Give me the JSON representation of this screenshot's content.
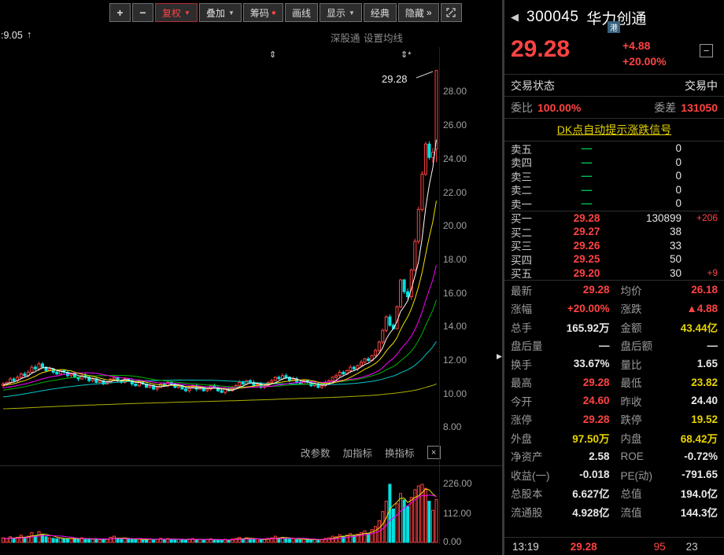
{
  "colors": {
    "red": "#ff4343",
    "cyan": "#00e2e2",
    "yellow": "#e8d400",
    "white": "#e9e9e9",
    "gray": "#9a9a9a",
    "green": "#00c050",
    "magenta": "#ff00ff",
    "ma5": "#ffffff",
    "ma10": "#f0e000",
    "ma20": "#ff00ff",
    "ma30": "#00b400",
    "ma60": "#00c8c8",
    "ma_long": "#b0b000"
  },
  "toolbar": {
    "zoom_in": "+",
    "zoom_out": "−",
    "fuquan": "复权",
    "diejia": "叠加",
    "chouma": "筹码",
    "chouma_dot": "●",
    "huaxian": "画线",
    "xianshi": "显示",
    "jingdian": "经典",
    "yincang": "隐藏",
    "caret": "▼",
    "chevrons": "»"
  },
  "info_row": {
    "left_value": ":9.05",
    "arrow": "↑",
    "shenggutong": "深股通",
    "set_ma": "设置均线"
  },
  "chart_annotations": {
    "peak_price": "29.28",
    "marker1": "⇕",
    "marker2": "⇕*"
  },
  "sub_toolbar": {
    "change_params": "改参数",
    "add_indicator": "加指标",
    "switch_indicator": "换指标",
    "close": "×"
  },
  "divider": {
    "arrow": "▶"
  },
  "chart_data": {
    "type": "candlestick",
    "y_ticks": [
      "28.00",
      "26.00",
      "24.00",
      "22.00",
      "20.00",
      "18.00",
      "16.00",
      "14.00",
      "12.00",
      "10.00",
      "8.00"
    ],
    "vol_ticks": [
      "226.00",
      "112.00",
      "0.00"
    ],
    "today": {
      "open": 24.6,
      "high": 29.28,
      "low": 23.82,
      "close": 29.28
    },
    "closes": [
      10.6,
      10.7,
      10.9,
      10.8,
      11.0,
      11.2,
      11.1,
      11.3,
      11.6,
      11.5,
      11.8,
      11.6,
      11.4,
      11.5,
      11.3,
      11.2,
      11.4,
      11.3,
      11.1,
      11.2,
      11.0,
      10.9,
      11.1,
      11.0,
      10.8,
      10.9,
      10.7,
      10.8,
      10.6,
      10.7,
      10.9,
      11.0,
      10.8,
      10.7,
      10.9,
      10.8,
      10.6,
      10.5,
      10.7,
      10.6,
      10.4,
      10.5,
      10.3,
      10.4,
      10.6,
      10.5,
      10.7,
      10.6,
      10.4,
      10.5,
      10.3,
      10.2,
      10.4,
      10.5,
      10.3,
      10.4,
      10.2,
      10.3,
      10.5,
      10.4,
      10.2,
      10.1,
      10.3,
      10.2,
      10.4,
      10.5,
      10.7,
      10.6,
      10.8,
      10.7,
      10.5,
      10.6,
      10.4,
      10.5,
      10.7,
      10.8,
      11.0,
      10.9,
      11.1,
      11.0,
      10.8,
      10.9,
      10.7,
      10.6,
      10.8,
      10.7,
      10.5,
      10.6,
      10.4,
      10.5,
      10.7,
      10.8,
      11.0,
      11.1,
      11.3,
      11.2,
      11.4,
      11.6,
      11.5,
      11.7,
      11.9,
      12.1,
      12.0,
      12.3,
      12.6,
      13.1,
      13.8,
      14.6,
      14.1,
      13.9,
      15.2,
      16.8,
      16.1,
      15.8,
      17.4,
      19.1,
      21.0,
      23.1,
      24.9,
      24.1,
      24.4,
      29.28
    ],
    "volumes": [
      18,
      15,
      22,
      16,
      20,
      28,
      17,
      24,
      38,
      26,
      42,
      30,
      22,
      18,
      16,
      14,
      18,
      15,
      13,
      16,
      14,
      12,
      18,
      13,
      15,
      12,
      14,
      11,
      13,
      12,
      20,
      24,
      15,
      12,
      17,
      13,
      12,
      10,
      14,
      11,
      12,
      14,
      10,
      12,
      16,
      11,
      15,
      12,
      10,
      13,
      11,
      9,
      13,
      15,
      10,
      12,
      9,
      11,
      14,
      10,
      9,
      8,
      12,
      9,
      13,
      16,
      20,
      14,
      18,
      13,
      11,
      14,
      10,
      12,
      16,
      18,
      24,
      15,
      20,
      16,
      13,
      15,
      11,
      10,
      14,
      11,
      9,
      12,
      9,
      11,
      16,
      18,
      24,
      22,
      30,
      24,
      28,
      34,
      26,
      32,
      38,
      45,
      36,
      50,
      62,
      85,
      120,
      160,
      226,
      130,
      150,
      190,
      165,
      140,
      175,
      205,
      220,
      226,
      210,
      160,
      125,
      166
    ]
  },
  "panel": {
    "back_arrow": "◀",
    "code": "300045",
    "name": "华力创通",
    "badge": "港",
    "price": "29.28",
    "change": "+4.88",
    "change_pct": "+20.00%",
    "minimize": "−",
    "trade_status_label": "交易状态",
    "trade_status": "交易中",
    "weibi_label": "委比",
    "weibi": "100.00%",
    "weicha_label": "委差",
    "weicha": "131050",
    "dk_link": "DK点自动提示涨跌信号",
    "sells": [
      {
        "label": "卖五",
        "price": "—",
        "vol": "0"
      },
      {
        "label": "卖四",
        "price": "—",
        "vol": "0"
      },
      {
        "label": "卖三",
        "price": "—",
        "vol": "0"
      },
      {
        "label": "卖二",
        "price": "—",
        "vol": "0"
      },
      {
        "label": "卖一",
        "price": "—",
        "vol": "0"
      }
    ],
    "buys": [
      {
        "label": "买一",
        "price": "29.28",
        "vol": "130899",
        "delta": "+206"
      },
      {
        "label": "买二",
        "price": "29.27",
        "vol": "38",
        "delta": ""
      },
      {
        "label": "买三",
        "price": "29.26",
        "vol": "33",
        "delta": ""
      },
      {
        "label": "买四",
        "price": "29.25",
        "vol": "50",
        "delta": ""
      },
      {
        "label": "买五",
        "price": "29.20",
        "vol": "30",
        "delta": "+9"
      }
    ],
    "stats": [
      {
        "l1": "最新",
        "v1": "29.28",
        "c1": "red",
        "l2": "均价",
        "v2": "26.18",
        "c2": "red"
      },
      {
        "l1": "涨幅",
        "v1": "+20.00%",
        "c1": "red",
        "l2": "涨跌",
        "v2": "▲4.88",
        "c2": "red"
      },
      {
        "l1": "总手",
        "v1": "165.92万",
        "c1": "white",
        "l2": "金额",
        "v2": "43.44亿",
        "c2": "yellow"
      },
      {
        "l1": "盘后量",
        "v1": "—",
        "c1": "white",
        "l2": "盘后额",
        "v2": "—",
        "c2": "white"
      },
      {
        "l1": "换手",
        "v1": "33.67%",
        "c1": "white",
        "l2": "量比",
        "v2": "1.65",
        "c2": "white"
      },
      {
        "l1": "最高",
        "v1": "29.28",
        "c1": "red",
        "l2": "最低",
        "v2": "23.82",
        "c2": "yellow"
      },
      {
        "l1": "今开",
        "v1": "24.60",
        "c1": "red",
        "l2": "昨收",
        "v2": "24.40",
        "c2": "white"
      },
      {
        "l1": "涨停",
        "v1": "29.28",
        "c1": "red",
        "l2": "跌停",
        "v2": "19.52",
        "c2": "yellow"
      },
      {
        "l1": "外盘",
        "v1": "97.50万",
        "c1": "yellow",
        "l2": "内盘",
        "v2": "68.42万",
        "c2": "yellow"
      },
      {
        "l1": "净资产",
        "v1": "2.58",
        "c1": "white",
        "l2": "ROE",
        "v2": "-0.72%",
        "c2": "white"
      },
      {
        "l1": "收益(一)",
        "v1": "-0.018",
        "c1": "white",
        "l2": "PE(动)",
        "v2": "-791.65",
        "c2": "white"
      },
      {
        "l1": "总股本",
        "v1": "6.627亿",
        "c1": "white",
        "l2": "总值",
        "v2": "194.0亿",
        "c2": "white"
      },
      {
        "l1": "流通股",
        "v1": "4.928亿",
        "c1": "white",
        "l2": "流值",
        "v2": "144.3亿",
        "c2": "white"
      }
    ],
    "tick": {
      "time": "13:19",
      "price": "29.28",
      "vol": "95",
      "count": "23"
    }
  }
}
